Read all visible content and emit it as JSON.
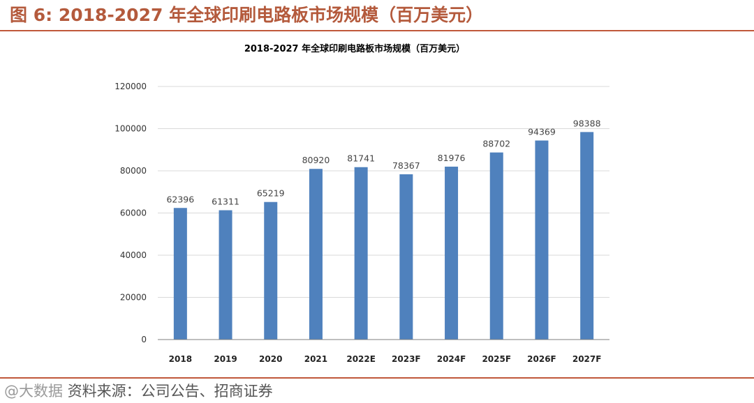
{
  "header": {
    "figure_label": "图 6:",
    "figure_title": "2018-2027 年全球印刷电路板市场规模（百万美元）"
  },
  "source": {
    "watermark": "@大数据",
    "text": "资料来源：公司公告、招商证券"
  },
  "colors": {
    "accent": "#c0583a",
    "bar": "#4f81bd",
    "grid": "#d9d9d9",
    "axis": "#7f7f7f"
  },
  "chart_data": {
    "type": "bar",
    "title": "2018-2027 年全球印刷电路板市场规模（百万美元）",
    "categories": [
      "2018",
      "2019",
      "2020",
      "2021",
      "2022E",
      "2023F",
      "2024F",
      "2025F",
      "2026F",
      "2027F"
    ],
    "series": [
      {
        "name": "全球印刷电路板市场规模",
        "values": [
          62396,
          61311,
          65219,
          80920,
          81741,
          78367,
          81976,
          88702,
          94369,
          98388
        ]
      }
    ],
    "value_labels": [
      "62396",
      "61311",
      "65219",
      "80920",
      "81741",
      "78367",
      "81976",
      "88702",
      "94369",
      "98388"
    ],
    "yticks": [
      0,
      20000,
      40000,
      60000,
      80000,
      100000,
      120000
    ],
    "ytick_labels": [
      "0",
      "20000",
      "40000",
      "60000",
      "80000",
      "100000",
      "120000"
    ],
    "ylim": [
      0,
      120000
    ],
    "xlabel": "",
    "ylabel": "",
    "grid": true,
    "legend": "none"
  }
}
